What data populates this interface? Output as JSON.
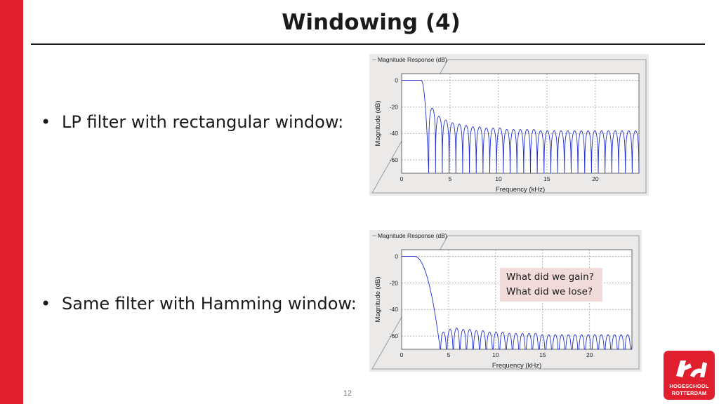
{
  "slide": {
    "title": "Windowing (4)",
    "bullets": [
      "LP filter with rectangular window:",
      "Same filter with Hamming window:"
    ],
    "note_lines": [
      "What did we gain?",
      "What did we lose?"
    ],
    "page_number": "12",
    "logo_lines": [
      "HOGESCHOOL",
      "ROTTERDAM"
    ],
    "accent_color": "#e0202e",
    "note_bg": "#f2dcdb"
  },
  "chart_data": [
    {
      "type": "line",
      "panel_title": "Magnitude Response (dB)",
      "xlabel": "Frequency (kHz)",
      "ylabel": "Magnitude (dB)",
      "xlim": [
        0,
        24.5
      ],
      "ylim": [
        -70,
        5
      ],
      "xticks": [
        0,
        5,
        10,
        15,
        20
      ],
      "yticks": [
        0,
        -20,
        -40,
        -60
      ],
      "grid": true,
      "series": [
        {
          "color": "#1f2fd0",
          "passband_edge_khz": 2.0,
          "transition_width_khz": 0.8,
          "first_null_khz": 2.8,
          "null_spacing_khz": 0.7,
          "sidelobe_peaks_db": [
            -21,
            -27,
            -30,
            -32,
            -33,
            -34,
            -35,
            -35,
            -36,
            -36,
            -36,
            -37,
            -37,
            -37,
            -37,
            -37,
            -38,
            -38,
            -38,
            -38,
            -38,
            -38,
            -38,
            -38,
            -38,
            -38,
            -38,
            -38,
            -38,
            -38
          ],
          "null_floor_db": -70
        }
      ]
    },
    {
      "type": "line",
      "panel_title": "Magnitude Response (dB)",
      "xlabel": "Frequency (kHz)",
      "ylabel": "Magnitude (dB)",
      "xlim": [
        0,
        24.5
      ],
      "ylim": [
        -70,
        5
      ],
      "xticks": [
        0,
        5,
        10,
        15,
        20
      ],
      "yticks": [
        0,
        -20,
        -40,
        -60
      ],
      "grid": true,
      "series": [
        {
          "color": "#1f2fd0",
          "passband_edge_khz": 1.3,
          "transition_width_khz": 2.8,
          "first_null_khz": 4.1,
          "null_spacing_khz": 0.7,
          "sidelobe_peaks_db": [
            -57,
            -55,
            -54,
            -55,
            -55,
            -56,
            -56,
            -57,
            -57,
            -57,
            -58,
            -58,
            -58,
            -58,
            -58,
            -59,
            -59,
            -59,
            -59,
            -59,
            -59,
            -59,
            -59,
            -59,
            -59,
            -59,
            -59,
            -59,
            -59,
            -59
          ],
          "null_floor_db": -70
        }
      ]
    }
  ]
}
